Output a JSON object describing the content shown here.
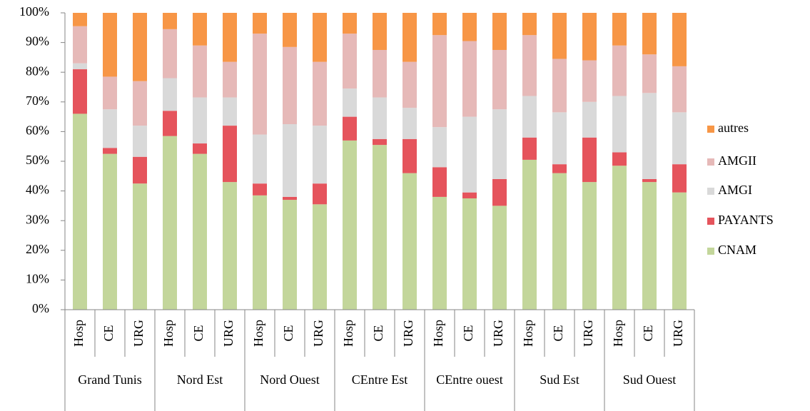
{
  "chart_data": {
    "type": "stacked_bar",
    "categories": [
      "Hosp",
      "CE",
      "URG",
      "Hosp",
      "CE",
      "URG",
      "Hosp",
      "CE",
      "URG",
      "Hosp",
      "CE",
      "URG",
      "Hosp",
      "CE",
      "URG",
      "Hosp",
      "CE",
      "URG",
      "Hosp",
      "CE",
      "URG"
    ],
    "groups": [
      "Grand Tunis",
      "Nord Est",
      "Nord Ouest",
      "CEntre Est",
      "CEntre ouest",
      "Sud Est",
      "Sud Ouest"
    ],
    "series": [
      {
        "name": "CNAM",
        "color": "#c3d69b",
        "values": [
          66,
          52.5,
          42.5,
          58.5,
          52.5,
          43,
          38.5,
          37,
          35.5,
          57,
          55.5,
          46,
          38,
          37.5,
          35,
          50.5,
          46,
          43,
          48.5,
          43,
          39.5
        ]
      },
      {
        "name": "PAYANTS",
        "color": "#e5545c",
        "values": [
          15,
          2,
          9,
          8.5,
          3.5,
          19,
          4,
          1,
          7,
          8,
          2,
          11.5,
          10,
          2,
          9,
          7.5,
          3,
          15,
          4.5,
          1,
          9.5
        ]
      },
      {
        "name": "AMGI",
        "color": "#d9d9d9",
        "values": [
          2,
          13,
          10.5,
          11,
          15.5,
          9.5,
          16.5,
          24.5,
          19.5,
          9.5,
          14,
          10.5,
          13.5,
          25.5,
          23.5,
          14,
          17.5,
          12,
          19,
          29,
          17.5
        ]
      },
      {
        "name": "AMGII",
        "color": "#e6b9b8",
        "values": [
          12.5,
          11,
          15,
          16.5,
          17.5,
          12,
          34,
          26,
          21.5,
          18.5,
          16,
          15.5,
          31,
          25.5,
          20,
          20.5,
          18,
          14,
          17,
          13,
          15.5
        ]
      },
      {
        "name": "autres",
        "color": "#f79646",
        "values": [
          4.5,
          21.5,
          23,
          5.5,
          11,
          16.5,
          7,
          11.5,
          16.5,
          7,
          12.5,
          16.5,
          7.5,
          9.5,
          12.5,
          7.5,
          15.5,
          16,
          11,
          14,
          18
        ]
      }
    ],
    "ylim": [
      0,
      100
    ],
    "yticks": [
      {
        "value": 0,
        "label": "0%"
      },
      {
        "value": 10,
        "label": "10%"
      },
      {
        "value": 20,
        "label": "20%"
      },
      {
        "value": 30,
        "label": "30%"
      },
      {
        "value": 40,
        "label": "40%"
      },
      {
        "value": 50,
        "label": "50%"
      },
      {
        "value": 60,
        "label": "60%"
      },
      {
        "value": 70,
        "label": "70%"
      },
      {
        "value": 80,
        "label": "80%"
      },
      {
        "value": 90,
        "label": "90%"
      },
      {
        "value": 100,
        "label": "100%"
      }
    ]
  }
}
